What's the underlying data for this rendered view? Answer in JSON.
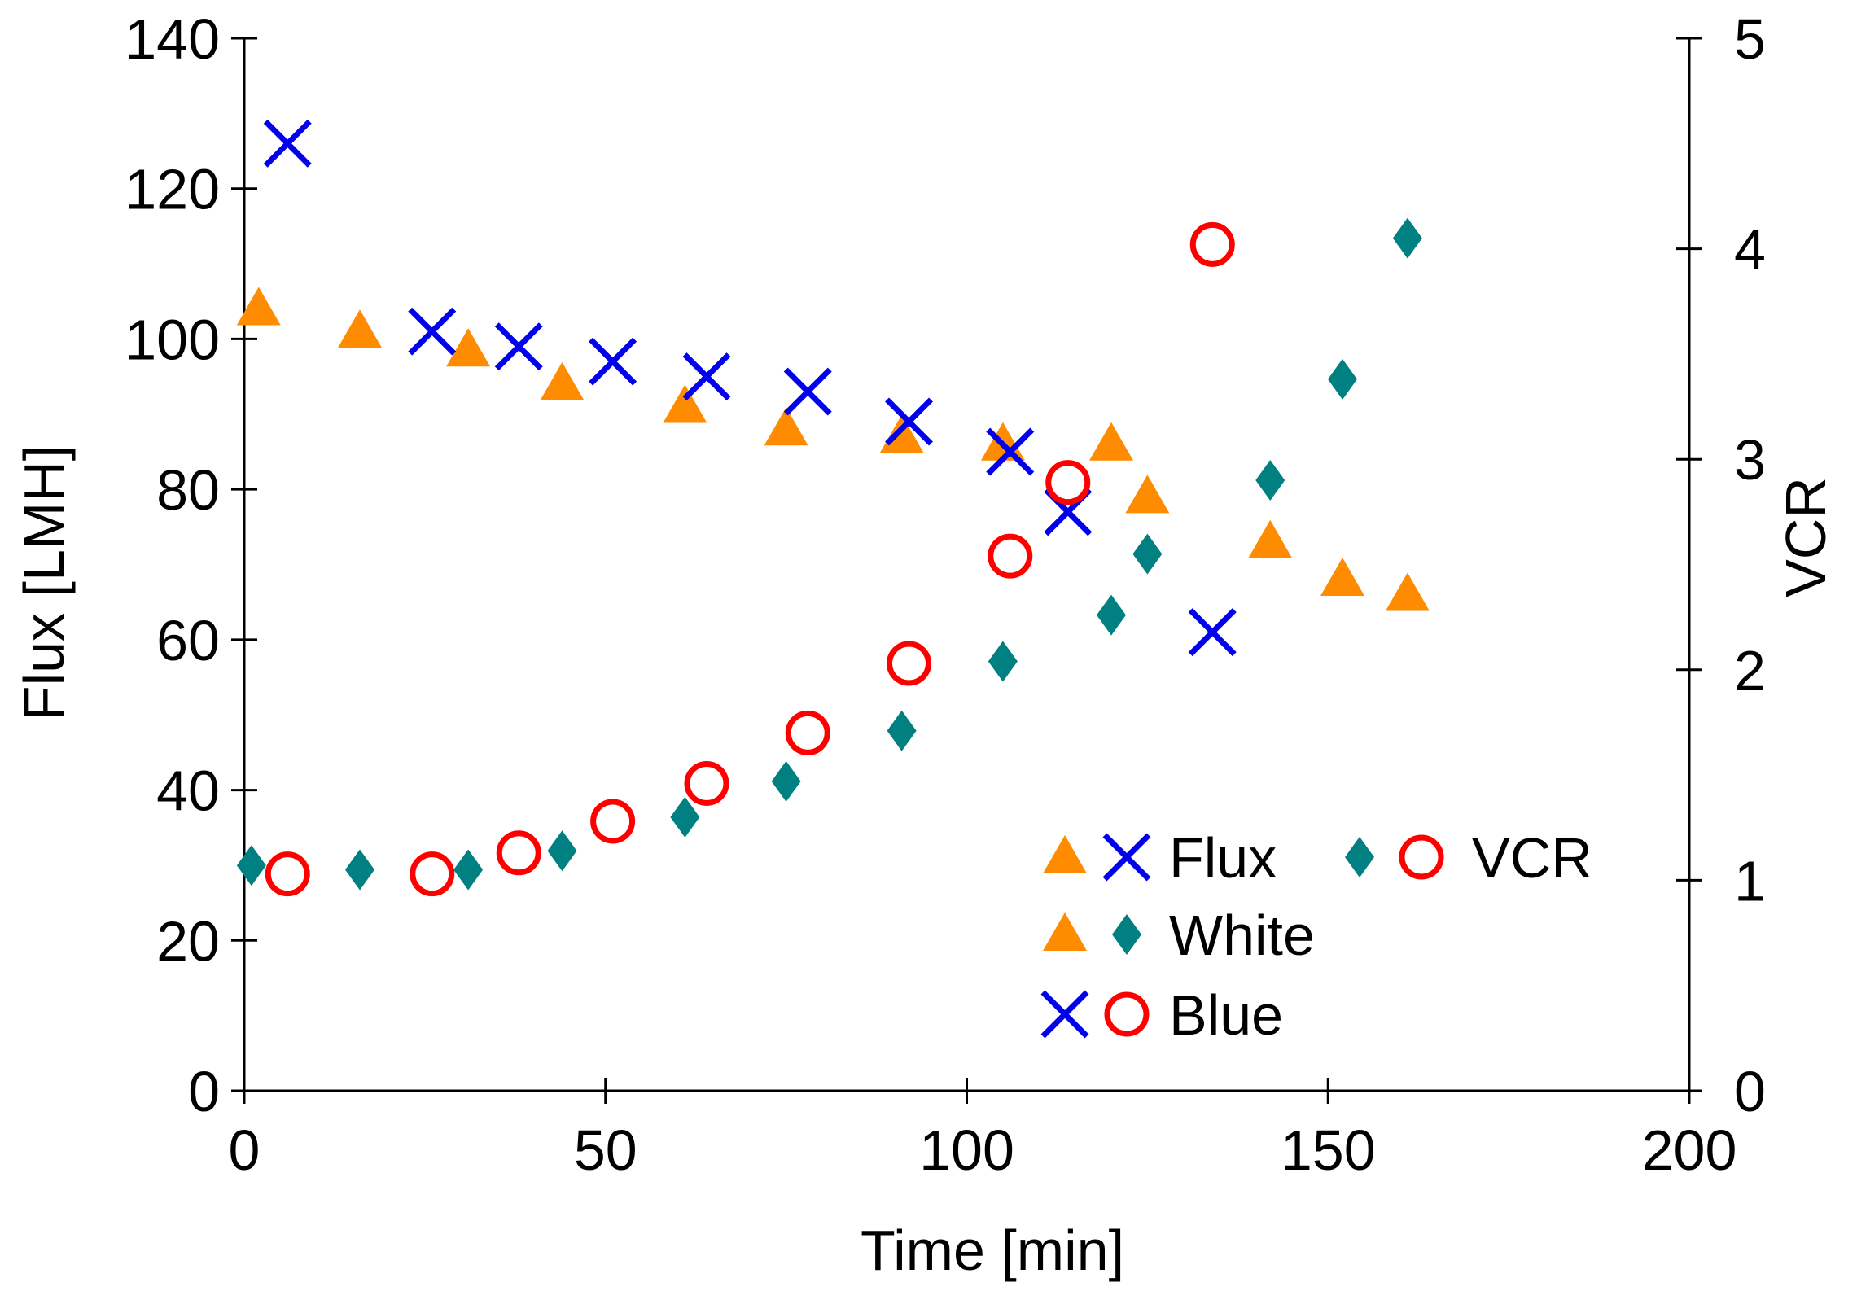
{
  "chart_data": {
    "type": "scatter",
    "title": "",
    "xlabel": "Time [min]",
    "ylabel": "Flux [LMH]",
    "y2label": "VCR",
    "xlim": [
      0,
      200
    ],
    "ylim": [
      0,
      140
    ],
    "y2lim": [
      0,
      5
    ],
    "x_ticks": [
      0,
      50,
      100,
      150,
      200
    ],
    "y_ticks": [
      0,
      20,
      40,
      60,
      80,
      100,
      120,
      140
    ],
    "y2_ticks": [
      0,
      1,
      2,
      3,
      4,
      5
    ],
    "grid": false,
    "legend": {
      "placement": "bottom-right",
      "rows": [
        {
          "label": "Flux",
          "markers": [
            "triangle",
            "cross"
          ]
        },
        {
          "label": "VCR",
          "markers": [
            "diamond",
            "circle"
          ]
        },
        {
          "label": "White",
          "markers": [
            "triangle",
            "diamond"
          ]
        },
        {
          "label": "Blue",
          "markers": [
            "cross",
            "circle"
          ]
        }
      ]
    },
    "series": [
      {
        "name": "White Flux",
        "axis": "left",
        "marker": "triangle",
        "color": "#ff8c00",
        "points": [
          [
            2,
            104
          ],
          [
            16,
            101
          ],
          [
            31,
            98.5
          ],
          [
            44,
            94
          ],
          [
            61,
            91
          ],
          [
            75,
            88
          ],
          [
            91,
            87
          ],
          [
            105,
            86
          ],
          [
            120,
            86
          ],
          [
            125,
            79
          ],
          [
            142,
            73
          ],
          [
            152,
            68
          ],
          [
            161,
            66
          ]
        ]
      },
      {
        "name": "Blue Flux",
        "axis": "left",
        "marker": "cross",
        "color": "#0000ee",
        "points": [
          [
            6,
            126
          ],
          [
            26,
            101
          ],
          [
            38,
            99
          ],
          [
            51,
            97
          ],
          [
            64,
            95
          ],
          [
            78,
            93
          ],
          [
            92,
            89
          ],
          [
            106,
            85
          ],
          [
            114,
            77
          ],
          [
            134,
            61
          ]
        ]
      },
      {
        "name": "White VCR",
        "axis": "right",
        "marker": "diamond",
        "color": "#008080",
        "points": [
          [
            1,
            1.07
          ],
          [
            16,
            1.05
          ],
          [
            31,
            1.05
          ],
          [
            44,
            1.14
          ],
          [
            61,
            1.3
          ],
          [
            75,
            1.47
          ],
          [
            91,
            1.71
          ],
          [
            105,
            2.04
          ],
          [
            120,
            2.26
          ],
          [
            125,
            2.55
          ],
          [
            142,
            2.9
          ],
          [
            152,
            3.38
          ],
          [
            161,
            4.05
          ]
        ]
      },
      {
        "name": "Blue VCR",
        "axis": "right",
        "marker": "circle",
        "color": "#ff0000",
        "points": [
          [
            6,
            1.03
          ],
          [
            26,
            1.03
          ],
          [
            38,
            1.13
          ],
          [
            51,
            1.28
          ],
          [
            64,
            1.46
          ],
          [
            78,
            1.7
          ],
          [
            92,
            2.03
          ],
          [
            106,
            2.54
          ],
          [
            114,
            2.89
          ],
          [
            134,
            4.02
          ]
        ]
      }
    ]
  }
}
